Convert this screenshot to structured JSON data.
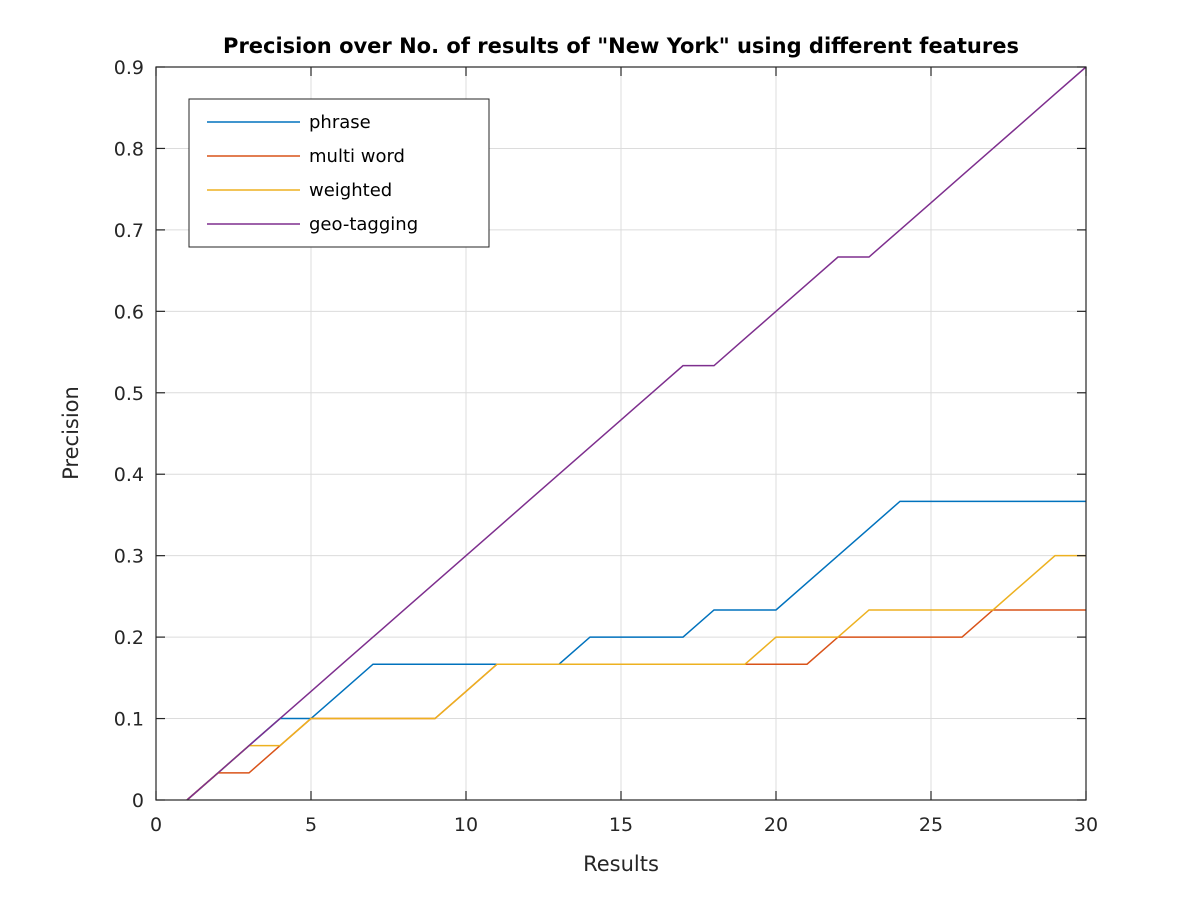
{
  "chart_data": {
    "type": "line",
    "title": "Precision over No. of results of \"New York\" using different features",
    "xlabel": "Results",
    "ylabel": "Precision",
    "xlim": [
      0,
      30
    ],
    "ylim": [
      0,
      0.9
    ],
    "xticks": [
      0,
      5,
      10,
      15,
      20,
      25,
      30
    ],
    "yticks": [
      0,
      0.1,
      0.2,
      0.3,
      0.4,
      0.5,
      0.6,
      0.7,
      0.8,
      0.9
    ],
    "xtick_labels": [
      "0",
      "5",
      "10",
      "15",
      "20",
      "25",
      "30"
    ],
    "ytick_labels": [
      "0",
      "0.1",
      "0.2",
      "0.3",
      "0.4",
      "0.5",
      "0.6",
      "0.7",
      "0.8",
      "0.9"
    ],
    "grid": true,
    "legend_position": "top-left",
    "x": [
      1,
      2,
      3,
      4,
      5,
      6,
      7,
      8,
      9,
      10,
      11,
      12,
      13,
      14,
      15,
      16,
      17,
      18,
      19,
      20,
      21,
      22,
      23,
      24,
      25,
      26,
      27,
      28,
      29,
      30
    ],
    "series": [
      {
        "name": "phrase",
        "color": "#0072BD",
        "values": [
          0,
          0.0333,
          0.0667,
          0.1,
          0.1,
          0.1333,
          0.1667,
          0.1667,
          0.1667,
          0.1667,
          0.1667,
          0.1667,
          0.1667,
          0.2,
          0.2,
          0.2,
          0.2,
          0.2333,
          0.2333,
          0.2333,
          0.2667,
          0.3,
          0.3333,
          0.3667,
          0.3667,
          0.3667,
          0.3667,
          0.3667,
          0.3667,
          0.3667
        ]
      },
      {
        "name": "multi word",
        "color": "#D95319",
        "values": [
          0,
          0.0333,
          0.0333,
          0.0667,
          0.1,
          0.1,
          0.1,
          0.1,
          0.1,
          0.1333,
          0.1667,
          0.1667,
          0.1667,
          0.1667,
          0.1667,
          0.1667,
          0.1667,
          0.1667,
          0.1667,
          0.1667,
          0.1667,
          0.2,
          0.2,
          0.2,
          0.2,
          0.2,
          0.2333,
          0.2333,
          0.2333,
          0.2333
        ]
      },
      {
        "name": "weighted",
        "color": "#EDB120",
        "values": [
          0,
          0.0333,
          0.0667,
          0.0667,
          0.1,
          0.1,
          0.1,
          0.1,
          0.1,
          0.1333,
          0.1667,
          0.1667,
          0.1667,
          0.1667,
          0.1667,
          0.1667,
          0.1667,
          0.1667,
          0.1667,
          0.2,
          0.2,
          0.2,
          0.2333,
          0.2333,
          0.2333,
          0.2333,
          0.2333,
          0.2667,
          0.3,
          0.3
        ]
      },
      {
        "name": "geo-tagging",
        "color": "#7E2F8E",
        "values": [
          0,
          0.0333,
          0.0667,
          0.1,
          0.1333,
          0.1667,
          0.2,
          0.2333,
          0.2667,
          0.3,
          0.3333,
          0.3667,
          0.4,
          0.4333,
          0.4667,
          0.5,
          0.5333,
          0.5333,
          0.5667,
          0.6,
          0.6333,
          0.6667,
          0.6667,
          0.7,
          0.7333,
          0.7667,
          0.8,
          0.8333,
          0.8667,
          0.9
        ]
      }
    ]
  }
}
